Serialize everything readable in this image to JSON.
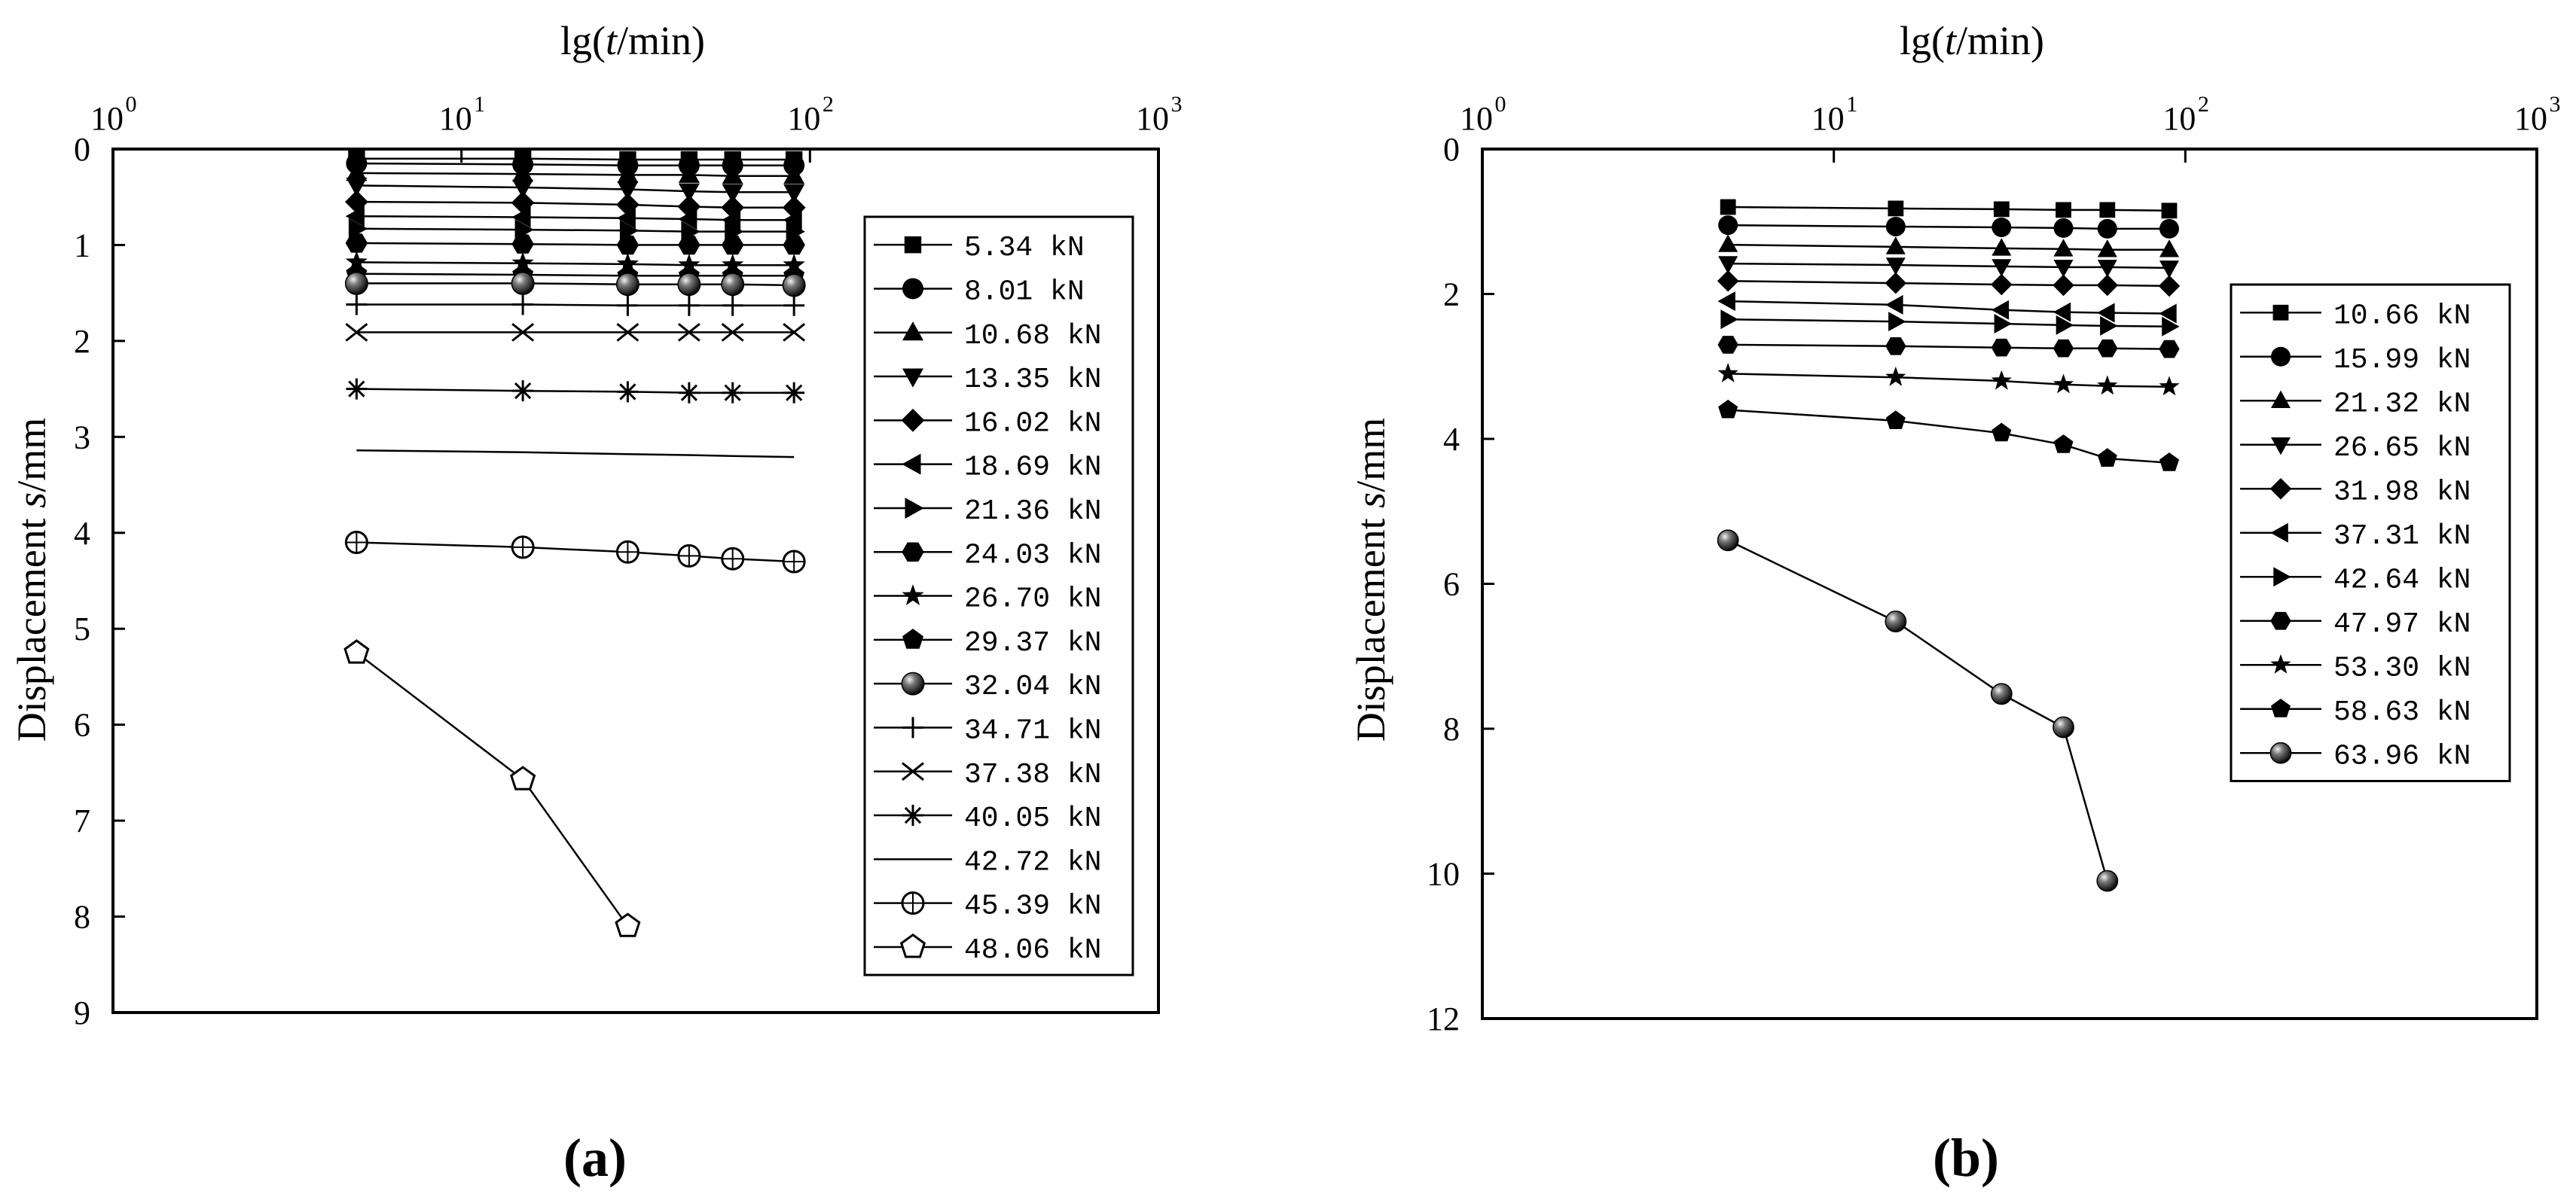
{
  "chart_data": [
    {
      "type": "line",
      "panel_label": "(a)",
      "x_title": {
        "prefix": "lg(",
        "italic": "t",
        "suffix": "/min)"
      },
      "y_title": {
        "text": "Displacement ",
        "italic": "s",
        "suffix": "/mm"
      },
      "x_scale": "log",
      "xlim": [
        1,
        1000
      ],
      "x_ticks": [
        1,
        10,
        100,
        1000
      ],
      "x_tick_labels": [
        {
          "base": "10",
          "exp": "0"
        },
        {
          "base": "10",
          "exp": "1"
        },
        {
          "base": "10",
          "exp": "2"
        },
        {
          "base": "10",
          "exp": "3"
        }
      ],
      "ylim": [
        0,
        9
      ],
      "y_inverted": true,
      "y_ticks": [
        0,
        1,
        2,
        3,
        4,
        5,
        6,
        7,
        8,
        9
      ],
      "y_tick_labels": [
        "0",
        "1",
        "2",
        "3",
        "4",
        "5",
        "6",
        "7",
        "8",
        "9"
      ],
      "grid": false,
      "legend_position": "right",
      "series": [
        {
          "name": "5.34 kN",
          "marker": "square",
          "x": [
            5,
            15,
            30,
            45,
            60,
            90
          ],
          "y": [
            0.1,
            0.1,
            0.11,
            0.11,
            0.11,
            0.11
          ]
        },
        {
          "name": "8.01 kN",
          "marker": "circle",
          "x": [
            5,
            15,
            30,
            45,
            60,
            90
          ],
          "y": [
            0.15,
            0.16,
            0.17,
            0.17,
            0.17,
            0.17
          ]
        },
        {
          "name": "10.68 kN",
          "marker": "triangle-up",
          "x": [
            5,
            15,
            30,
            45,
            60,
            90
          ],
          "y": [
            0.25,
            0.26,
            0.27,
            0.27,
            0.28,
            0.28
          ]
        },
        {
          "name": "13.35 kN",
          "marker": "triangle-down",
          "x": [
            5,
            15,
            30,
            45,
            60,
            90
          ],
          "y": [
            0.38,
            0.4,
            0.42,
            0.44,
            0.45,
            0.45
          ]
        },
        {
          "name": "16.02 kN",
          "marker": "diamond",
          "x": [
            5,
            15,
            30,
            45,
            60,
            90
          ],
          "y": [
            0.55,
            0.56,
            0.58,
            0.6,
            0.61,
            0.61
          ]
        },
        {
          "name": "18.69 kN",
          "marker": "triangle-left",
          "x": [
            5,
            15,
            30,
            45,
            60,
            90
          ],
          "y": [
            0.7,
            0.71,
            0.72,
            0.73,
            0.74,
            0.74
          ]
        },
        {
          "name": "21.36 kN",
          "marker": "triangle-right",
          "x": [
            5,
            15,
            30,
            45,
            60,
            90
          ],
          "y": [
            0.83,
            0.84,
            0.85,
            0.86,
            0.86,
            0.86
          ]
        },
        {
          "name": "24.03 kN",
          "marker": "hexagon",
          "x": [
            5,
            15,
            30,
            45,
            60,
            90
          ],
          "y": [
            0.98,
            0.99,
            1.0,
            1.0,
            1.0,
            1.0
          ]
        },
        {
          "name": "26.70 kN",
          "marker": "star",
          "x": [
            5,
            15,
            30,
            45,
            60,
            90
          ],
          "y": [
            1.18,
            1.19,
            1.2,
            1.21,
            1.21,
            1.21
          ]
        },
        {
          "name": "29.37 kN",
          "marker": "pentagon",
          "x": [
            5,
            15,
            30,
            45,
            60,
            90
          ],
          "y": [
            1.3,
            1.31,
            1.32,
            1.32,
            1.32,
            1.32
          ]
        },
        {
          "name": "32.04 kN",
          "marker": "sphere",
          "x": [
            5,
            15,
            30,
            45,
            60,
            90
          ],
          "y": [
            1.4,
            1.4,
            1.41,
            1.41,
            1.41,
            1.42
          ]
        },
        {
          "name": "34.71 kN",
          "marker": "plus",
          "x": [
            5,
            15,
            30,
            45,
            60,
            90
          ],
          "y": [
            1.62,
            1.62,
            1.63,
            1.63,
            1.63,
            1.63
          ]
        },
        {
          "name": "37.38 kN",
          "marker": "x",
          "x": [
            5,
            15,
            30,
            45,
            60,
            90
          ],
          "y": [
            1.91,
            1.91,
            1.91,
            1.91,
            1.91,
            1.91
          ]
        },
        {
          "name": "40.05 kN",
          "marker": "asterisk",
          "x": [
            5,
            15,
            30,
            45,
            60,
            90
          ],
          "y": [
            2.5,
            2.52,
            2.53,
            2.54,
            2.54,
            2.54
          ]
        },
        {
          "name": "42.72 kN",
          "marker": "none",
          "x": [
            5,
            15,
            30,
            45,
            60,
            90
          ],
          "y": [
            3.14,
            3.16,
            3.18,
            3.19,
            3.2,
            3.21
          ]
        },
        {
          "name": "45.39 kN",
          "marker": "circle-plus",
          "x": [
            5,
            15,
            30,
            45,
            60,
            90
          ],
          "y": [
            4.1,
            4.15,
            4.2,
            4.24,
            4.27,
            4.3
          ]
        },
        {
          "name": "48.06 kN",
          "marker": "pentagon-open",
          "x": [
            5,
            15,
            30
          ],
          "y": [
            5.25,
            6.57,
            8.1
          ]
        }
      ]
    },
    {
      "type": "line",
      "panel_label": "(b)",
      "x_title": {
        "prefix": "lg(",
        "italic": "t",
        "suffix": "/min)"
      },
      "y_title": {
        "text": "Displacement ",
        "italic": "s",
        "suffix": "/mm"
      },
      "x_scale": "log",
      "xlim": [
        1,
        1000
      ],
      "x_ticks": [
        1,
        10,
        100,
        1000
      ],
      "x_tick_labels": [
        {
          "base": "10",
          "exp": "0"
        },
        {
          "base": "10",
          "exp": "1"
        },
        {
          "base": "10",
          "exp": "2"
        },
        {
          "base": "10",
          "exp": "3"
        }
      ],
      "ylim": [
        0,
        12
      ],
      "y_inverted": true,
      "y_ticks": [
        0,
        2,
        4,
        6,
        8,
        10,
        12
      ],
      "y_tick_labels": [
        "0",
        "2",
        "4",
        "6",
        "8",
        "10",
        "12"
      ],
      "grid": false,
      "legend_position": "right",
      "series": [
        {
          "name": "10.66 kN",
          "marker": "square",
          "x": [
            5,
            15,
            30,
            45,
            60,
            90
          ],
          "y": [
            0.8,
            0.82,
            0.83,
            0.84,
            0.84,
            0.85
          ]
        },
        {
          "name": "15.99 kN",
          "marker": "circle",
          "x": [
            5,
            15,
            30,
            45,
            60,
            90
          ],
          "y": [
            1.05,
            1.07,
            1.08,
            1.09,
            1.1,
            1.1
          ]
        },
        {
          "name": "21.32 kN",
          "marker": "triangle-up",
          "x": [
            5,
            15,
            30,
            45,
            60,
            90
          ],
          "y": [
            1.32,
            1.35,
            1.37,
            1.38,
            1.39,
            1.39
          ]
        },
        {
          "name": "26.65 kN",
          "marker": "triangle-down",
          "x": [
            5,
            15,
            30,
            45,
            60,
            90
          ],
          "y": [
            1.58,
            1.6,
            1.62,
            1.63,
            1.63,
            1.64
          ]
        },
        {
          "name": "31.98 kN",
          "marker": "diamond",
          "x": [
            5,
            15,
            30,
            45,
            60,
            90
          ],
          "y": [
            1.82,
            1.85,
            1.87,
            1.88,
            1.88,
            1.89
          ]
        },
        {
          "name": "37.31 kN",
          "marker": "triangle-left",
          "x": [
            5,
            15,
            30,
            45,
            60,
            90
          ],
          "y": [
            2.1,
            2.15,
            2.22,
            2.25,
            2.26,
            2.27
          ]
        },
        {
          "name": "42.64 kN",
          "marker": "triangle-right",
          "x": [
            5,
            15,
            30,
            45,
            60,
            90
          ],
          "y": [
            2.35,
            2.38,
            2.41,
            2.43,
            2.44,
            2.45
          ]
        },
        {
          "name": "47.97 kN",
          "marker": "hexagon",
          "x": [
            5,
            15,
            30,
            45,
            60,
            90
          ],
          "y": [
            2.7,
            2.72,
            2.74,
            2.75,
            2.75,
            2.76
          ]
        },
        {
          "name": "53.30 kN",
          "marker": "star",
          "x": [
            5,
            15,
            30,
            45,
            60,
            90
          ],
          "y": [
            3.1,
            3.15,
            3.2,
            3.25,
            3.27,
            3.28
          ]
        },
        {
          "name": "58.63 kN",
          "marker": "pentagon",
          "x": [
            5,
            15,
            30,
            45,
            60,
            90
          ],
          "y": [
            3.6,
            3.75,
            3.92,
            4.08,
            4.27,
            4.33
          ]
        },
        {
          "name": "63.96 kN",
          "marker": "sphere",
          "x": [
            5,
            15,
            30,
            45,
            60
          ],
          "y": [
            5.4,
            6.52,
            7.52,
            7.98,
            10.1
          ]
        }
      ]
    }
  ]
}
